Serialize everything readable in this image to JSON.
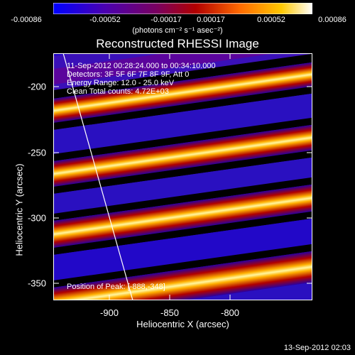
{
  "colorbar": {
    "ticks": [
      "-0.00086",
      "-0.00052",
      "-0.00017",
      "0.00017",
      "0.00052",
      "0.00086"
    ],
    "units": "(photons cm⁻² s⁻¹ asec⁻²)",
    "colors": [
      "#0000ff",
      "#4b00b0",
      "#7a0060",
      "#b20000",
      "#ff6a00",
      "#ffc800",
      "#ffffff"
    ]
  },
  "plot": {
    "title": "Reconstructed RHESSI Image",
    "time_range": "11-Sep-2012 00:28:24.000 to 00:34:10.000",
    "detectors": "Detectors: 3F 5F 6F 7F 8F 9F, Att 0",
    "energy_range": "Energy Range: 12.0 - 25.0 keV",
    "clean": "Clean     Total counts: 4.72E+03",
    "peak": "Position of Peak: [-888,-348]",
    "xlabel": "Heliocentric X (arcsec)",
    "ylabel": "Heliocentric Y (arcsec)",
    "xticks": [
      "-900",
      "-850",
      "-800"
    ],
    "yticks": [
      "-200",
      "-250",
      "-300",
      "-350"
    ]
  },
  "timestamp": "13-Sep-2012 02:03"
}
